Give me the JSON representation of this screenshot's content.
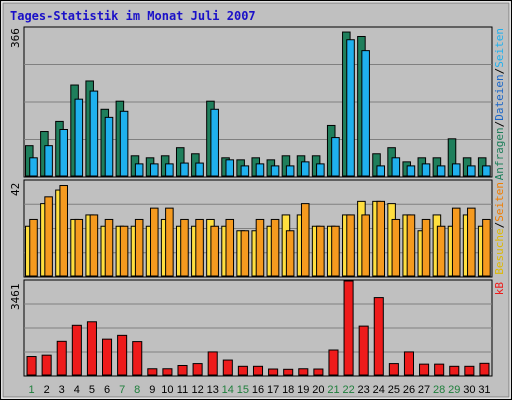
{
  "chart_data": {
    "type": "bar",
    "title": "Tages-Statistik im Monat Juli 2007",
    "days": [
      "1",
      "2",
      "3",
      "4",
      "5",
      "6",
      "7",
      "8",
      "9",
      "10",
      "11",
      "12",
      "13",
      "14",
      "15",
      "16",
      "17",
      "18",
      "19",
      "20",
      "21",
      "22",
      "23",
      "24",
      "25",
      "26",
      "27",
      "28",
      "29",
      "30",
      "31"
    ],
    "weekend_days": [
      "1",
      "7",
      "8",
      "14",
      "15",
      "21",
      "22",
      "28",
      "29"
    ],
    "panels": [
      {
        "id": "requests",
        "ymax_label": "366",
        "ymax": 366,
        "series": [
          {
            "name": "Anfragen",
            "color": "#1f7f5c",
            "values": [
              75,
              110,
              135,
              225,
              235,
              165,
              185,
              50,
              45,
              50,
              70,
              55,
              185,
              45,
              40,
              45,
              40,
              50,
              50,
              50,
              125,
              356,
              345,
              55,
              70,
              35,
              45,
              45,
              92,
              45,
              45
            ]
          },
          {
            "name": "Dateien",
            "color": "#1fb0ee",
            "values": [
              45,
              75,
              115,
              190,
              210,
              145,
              160,
              30,
              30,
              30,
              32,
              32,
              165,
              40,
              25,
              30,
              25,
              25,
              35,
              30,
              95,
              337,
              310,
              25,
              45,
              25,
              30,
              25,
              30,
              25,
              25
            ]
          }
        ]
      },
      {
        "id": "visits",
        "ymax_label": "42",
        "ymax": 42,
        "series": [
          {
            "name": "Seiten",
            "color": "#ffdf3f",
            "values": [
              22,
              32,
              38,
              25,
              27,
              22,
              22,
              22,
              22,
              25,
              22,
              22,
              25,
              22,
              20,
              20,
              22,
              27,
              27,
              22,
              22,
              27,
              33,
              33,
              32,
              27,
              20,
              27,
              22,
              27,
              22
            ]
          },
          {
            "name": "Besuche",
            "color": "#f59a1f",
            "values": [
              25,
              35,
              40,
              25,
              27,
              25,
              22,
              25,
              30,
              30,
              25,
              25,
              22,
              25,
              20,
              25,
              25,
              20,
              32,
              22,
              22,
              27,
              27,
              33,
              25,
              27,
              25,
              22,
              30,
              30,
              25
            ]
          }
        ]
      },
      {
        "id": "traffic",
        "ymax_label": "3461",
        "ymax": 3461,
        "series": [
          {
            "name": "kB",
            "color": "#ee1b1b",
            "values": [
              680,
              730,
              1240,
              1830,
              1960,
              1320,
              1460,
              1230,
              230,
              230,
              350,
              420,
              850,
              550,
              320,
              320,
              220,
              210,
              230,
              220,
              920,
              3461,
              1800,
              2850,
              420,
              850,
              400,
              400,
              320,
              320,
              430
            ]
          }
        ]
      }
    ],
    "legend": {
      "panel1": [
        {
          "text": "Anfragen",
          "color": "#1f7f5c"
        },
        {
          "text": "/",
          "color": "#000000"
        },
        {
          "text": "Dateien",
          "color": "#1a66c8"
        },
        {
          "text": "/",
          "color": "#000000"
        },
        {
          "text": "Seiten",
          "color": "#1fb0ee"
        }
      ],
      "panel2": [
        {
          "text": "Besuche",
          "color": "#ddb800"
        },
        {
          "text": "/",
          "color": "#000000"
        },
        {
          "text": "Seiten",
          "color": "#f07d00"
        }
      ],
      "panel3": [
        {
          "text": "kB",
          "color": "#ee1b1b"
        }
      ]
    },
    "colors": {
      "background": "#c0c0c0",
      "plot": "#c0c0c0",
      "gridline": "#808080",
      "title": "#1a10c8",
      "weekday_label": "#000000",
      "weekend_label": "#1f7f3c"
    }
  }
}
